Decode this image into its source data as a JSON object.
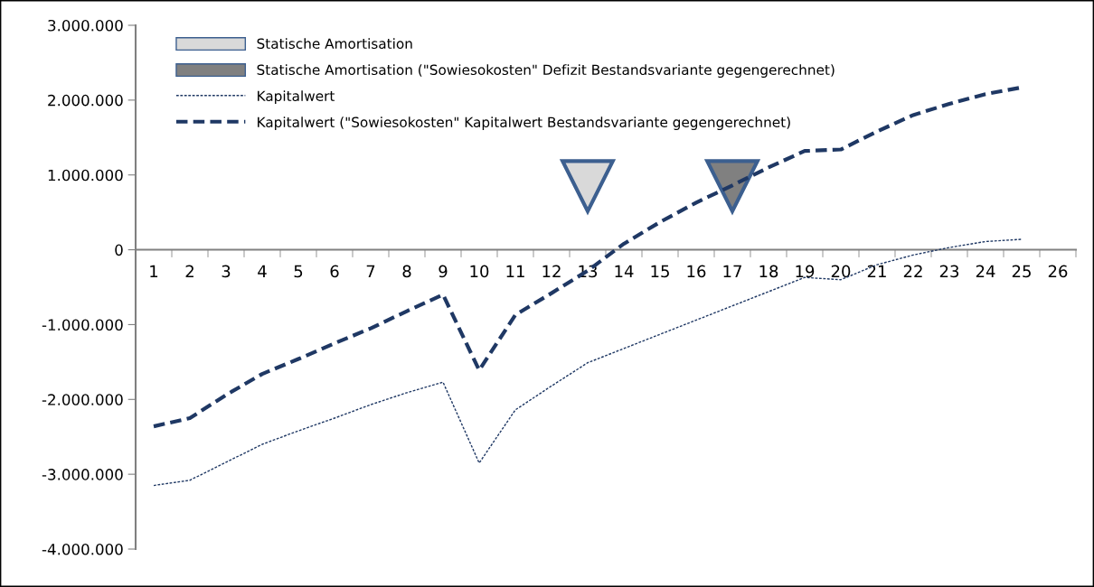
{
  "chart_data": {
    "type": "line",
    "categories": [
      "1",
      "2",
      "3",
      "4",
      "5",
      "6",
      "7",
      "8",
      "9",
      "10",
      "11",
      "12",
      "13",
      "14",
      "15",
      "16",
      "17",
      "18",
      "19",
      "20",
      "21",
      "22",
      "23",
      "24",
      "25",
      "26"
    ],
    "series": [
      {
        "name": "Statische Amortisation",
        "type": "scatter",
        "marker": "triangle",
        "color": "#d9d9d9",
        "values": [
          null,
          null,
          null,
          null,
          null,
          null,
          null,
          null,
          null,
          null,
          null,
          null,
          850000,
          null,
          null,
          null,
          null,
          null,
          null,
          null,
          null,
          null,
          null,
          null,
          null,
          null
        ]
      },
      {
        "name": "Statische Amortisation (\"Sowiesokosten\" Defizit Bestandsvariante gegengerechnet)",
        "type": "scatter",
        "marker": "triangle",
        "color": "#808080",
        "values": [
          null,
          null,
          null,
          null,
          null,
          null,
          null,
          null,
          null,
          null,
          null,
          null,
          null,
          null,
          null,
          null,
          850000,
          null,
          null,
          null,
          null,
          null,
          null,
          null,
          null,
          null
        ]
      },
      {
        "name": "Kapitalwert",
        "line_style": "dotted",
        "color": "#1f3864",
        "values": [
          -3150000,
          -3080000,
          -2840000,
          -2600000,
          -2420000,
          -2250000,
          -2070000,
          -1910000,
          -1770000,
          -2850000,
          -2140000,
          -1820000,
          -1510000,
          -1320000,
          -1130000,
          -940000,
          -750000,
          -560000,
          -370000,
          -400000,
          -200000,
          -70000,
          30000,
          110000,
          140000,
          null
        ]
      },
      {
        "name": "Kapitalwert (\"Sowiesokosten\" Kapitalwert Bestandsvariante gegengerechnet)",
        "line_style": "dashed",
        "color": "#1f3864",
        "values": [
          -2360000,
          -2250000,
          -1940000,
          -1660000,
          -1460000,
          -1250000,
          -1050000,
          -820000,
          -600000,
          -1610000,
          -870000,
          -580000,
          -280000,
          80000,
          370000,
          630000,
          860000,
          1100000,
          1320000,
          1340000,
          1580000,
          1800000,
          1950000,
          2080000,
          2170000,
          null
        ]
      }
    ],
    "ylim": [
      -4000000,
      3000000
    ],
    "yticks": [
      {
        "value": -4000000,
        "label": "-4.000.000"
      },
      {
        "value": -3000000,
        "label": "-3.000.000"
      },
      {
        "value": -2000000,
        "label": "-2.000.000"
      },
      {
        "value": -1000000,
        "label": "-1.000.000"
      },
      {
        "value": 0,
        "label": "0"
      },
      {
        "value": 1000000,
        "label": "1.000.000"
      },
      {
        "value": 2000000,
        "label": "2.000.000"
      },
      {
        "value": 3000000,
        "label": "3.000.000"
      }
    ],
    "grid": false,
    "legend": "top left"
  }
}
